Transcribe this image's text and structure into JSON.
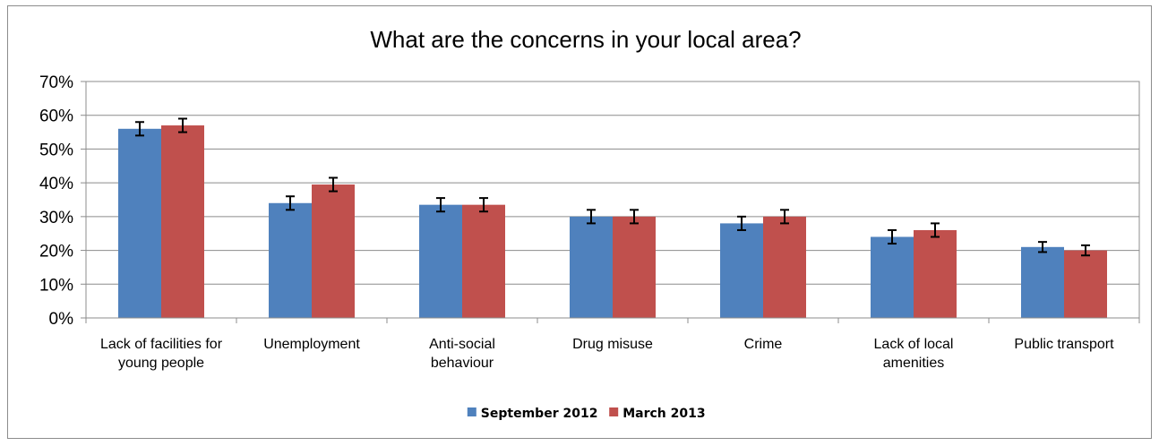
{
  "chart_data": {
    "type": "bar",
    "title": "What are the concerns in your local area?",
    "categories": [
      [
        "Lack of facilities for",
        "young people"
      ],
      [
        "Unemployment"
      ],
      [
        "Anti-social",
        "behaviour"
      ],
      [
        "Drug misuse"
      ],
      [
        "Crime"
      ],
      [
        "Lack of local",
        "amenities"
      ],
      [
        "Public transport"
      ]
    ],
    "series": [
      {
        "name": "September 2012",
        "color": "#4f81bd",
        "values": [
          56,
          34,
          33.5,
          30,
          28,
          24,
          21
        ],
        "error": [
          2,
          2,
          2,
          2,
          2,
          2,
          1.5
        ]
      },
      {
        "name": "March 2013",
        "color": "#c0504d",
        "values": [
          57,
          39.5,
          33.5,
          30,
          30,
          26,
          20
        ],
        "error": [
          2,
          2,
          2,
          2,
          2,
          2,
          1.5
        ]
      }
    ],
    "y_ticks": [
      "0%",
      "10%",
      "20%",
      "30%",
      "40%",
      "50%",
      "60%",
      "70%"
    ],
    "ylim": [
      0,
      70
    ],
    "y_unit": "%",
    "grid": true,
    "legend_position": "bottom"
  }
}
